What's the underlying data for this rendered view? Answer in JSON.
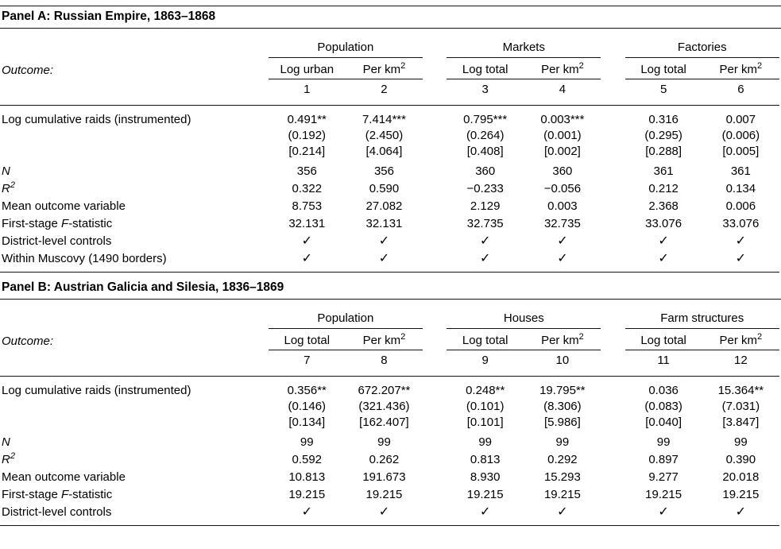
{
  "panels": [
    {
      "title": "Panel A: Russian Empire, 1863–1868",
      "outcome_label": "Outcome:",
      "groups": [
        {
          "label": "Population",
          "sublabels": [
            "Log urban",
            "Per km²"
          ]
        },
        {
          "label": "Markets",
          "sublabels": [
            "Log total",
            "Per km²"
          ]
        },
        {
          "label": "Factories",
          "sublabels": [
            "Log total",
            "Per km²"
          ]
        }
      ],
      "column_numbers": [
        "1",
        "2",
        "3",
        "4",
        "5",
        "6"
      ],
      "coef_row": {
        "label": "Log cumulative raids (instrumented)",
        "cells": [
          {
            "coef": "0.491**",
            "se": "(0.192)",
            "alt": "[0.214]"
          },
          {
            "coef": "7.414***",
            "se": "(2.450)",
            "alt": "[4.064]"
          },
          {
            "coef": "0.795***",
            "se": "(0.264)",
            "alt": "[0.408]"
          },
          {
            "coef": "0.003***",
            "se": "(0.001)",
            "alt": "[0.002]"
          },
          {
            "coef": "0.316",
            "se": "(0.295)",
            "alt": "[0.288]"
          },
          {
            "coef": "0.007",
            "se": "(0.006)",
            "alt": "[0.005]"
          }
        ]
      },
      "stat_rows": [
        {
          "label": "N",
          "italic": true,
          "values": [
            "356",
            "356",
            "360",
            "360",
            "361",
            "361"
          ]
        },
        {
          "label": "R²",
          "italic": true,
          "values": [
            "0.322",
            "0.590",
            "−0.233",
            "−0.056",
            "0.212",
            "0.134"
          ]
        },
        {
          "label": "Mean outcome variable",
          "italic": false,
          "values": [
            "8.753",
            "27.082",
            "2.129",
            "0.003",
            "2.368",
            "0.006"
          ]
        },
        {
          "label": "First-stage F-statistic",
          "italic": false,
          "values": [
            "32.131",
            "32.131",
            "32.735",
            "32.735",
            "33.076",
            "33.076"
          ]
        },
        {
          "label": "District-level controls",
          "italic": false,
          "values": [
            "✓",
            "✓",
            "✓",
            "✓",
            "✓",
            "✓"
          ]
        },
        {
          "label": "Within Muscovy (1490 borders)",
          "italic": false,
          "values": [
            "✓",
            "✓",
            "✓",
            "✓",
            "✓",
            "✓"
          ]
        }
      ]
    },
    {
      "title": "Panel B: Austrian Galicia and Silesia, 1836–1869",
      "outcome_label": "Outcome:",
      "groups": [
        {
          "label": "Population",
          "sublabels": [
            "Log total",
            "Per km²"
          ]
        },
        {
          "label": "Houses",
          "sublabels": [
            "Log total",
            "Per km²"
          ]
        },
        {
          "label": "Farm structures",
          "sublabels": [
            "Log total",
            "Per km²"
          ]
        }
      ],
      "column_numbers": [
        "7",
        "8",
        "9",
        "10",
        "11",
        "12"
      ],
      "coef_row": {
        "label": "Log cumulative raids (instrumented)",
        "cells": [
          {
            "coef": "0.356**",
            "se": "(0.146)",
            "alt": "[0.134]"
          },
          {
            "coef": "672.207**",
            "se": "(321.436)",
            "alt": "[162.407]"
          },
          {
            "coef": "0.248**",
            "se": "(0.101)",
            "alt": "[0.101]"
          },
          {
            "coef": "19.795**",
            "se": "(8.306)",
            "alt": "[5.986]"
          },
          {
            "coef": "0.036",
            "se": "(0.083)",
            "alt": "[0.040]"
          },
          {
            "coef": "15.364**",
            "se": "(7.031)",
            "alt": "[3.847]"
          }
        ]
      },
      "stat_rows": [
        {
          "label": "N",
          "italic": true,
          "values": [
            "99",
            "99",
            "99",
            "99",
            "99",
            "99"
          ]
        },
        {
          "label": "R²",
          "italic": true,
          "values": [
            "0.592",
            "0.262",
            "0.813",
            "0.292",
            "0.897",
            "0.390"
          ]
        },
        {
          "label": "Mean outcome variable",
          "italic": false,
          "values": [
            "10.813",
            "191.673",
            "8.930",
            "15.293",
            "9.277",
            "20.018"
          ]
        },
        {
          "label": "First-stage F-statistic",
          "italic": false,
          "values": [
            "19.215",
            "19.215",
            "19.215",
            "19.215",
            "19.215",
            "19.215"
          ]
        },
        {
          "label": "District-level controls",
          "italic": false,
          "values": [
            "✓",
            "✓",
            "✓",
            "✓",
            "✓",
            "✓"
          ]
        }
      ]
    }
  ]
}
